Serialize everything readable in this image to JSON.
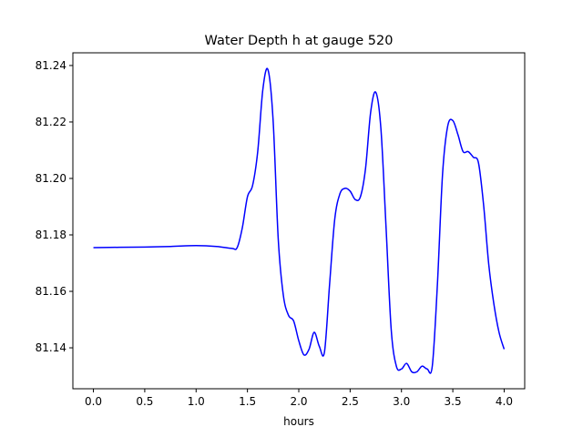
{
  "chart_data": {
    "type": "line",
    "title": "Water Depth h at gauge 520",
    "xlabel": "hours",
    "ylabel": "",
    "xlim": [
      -0.2,
      4.2
    ],
    "ylim": [
      81.1255,
      81.2445
    ],
    "xticks": [
      0.0,
      0.5,
      1.0,
      1.5,
      2.0,
      2.5,
      3.0,
      3.5,
      4.0
    ],
    "xtick_labels": [
      "0.0",
      "0.5",
      "1.0",
      "1.5",
      "2.0",
      "2.5",
      "3.0",
      "3.5",
      "4.0"
    ],
    "yticks": [
      81.14,
      81.16,
      81.18,
      81.2,
      81.22,
      81.24
    ],
    "ytick_labels": [
      "81.14",
      "81.16",
      "81.18",
      "81.20",
      "81.22",
      "81.24"
    ],
    "grid": false,
    "legend": "none",
    "series": [
      {
        "color": "#0000ff",
        "x": [
          0.0,
          0.25,
          0.5,
          0.75,
          1.0,
          1.2,
          1.35,
          1.4,
          1.45,
          1.5,
          1.55,
          1.6,
          1.65,
          1.7,
          1.75,
          1.8,
          1.85,
          1.9,
          1.95,
          2.0,
          2.05,
          2.1,
          2.15,
          2.2,
          2.25,
          2.3,
          2.35,
          2.4,
          2.45,
          2.5,
          2.55,
          2.6,
          2.65,
          2.7,
          2.75,
          2.8,
          2.85,
          2.9,
          2.95,
          3.0,
          3.05,
          3.1,
          3.15,
          3.2,
          3.25,
          3.3,
          3.35,
          3.4,
          3.45,
          3.5,
          3.55,
          3.6,
          3.65,
          3.7,
          3.75,
          3.8,
          3.85,
          3.9,
          3.95,
          4.0
        ],
        "y": [
          81.1755,
          81.1756,
          81.1757,
          81.1759,
          81.1762,
          81.1759,
          81.1752,
          81.1755,
          81.1825,
          81.1935,
          81.1975,
          81.2095,
          81.2315,
          81.2385,
          81.2205,
          81.1785,
          81.1585,
          81.1515,
          81.1495,
          81.1425,
          81.1375,
          81.1395,
          81.1455,
          81.1405,
          81.1385,
          81.1625,
          81.1855,
          81.1945,
          81.1965,
          81.1955,
          81.1925,
          81.1935,
          81.2035,
          81.2235,
          81.2305,
          81.2175,
          81.1825,
          81.1465,
          81.1335,
          81.1325,
          81.1345,
          81.1315,
          81.1315,
          81.1335,
          81.1325,
          81.1335,
          81.1625,
          81.2015,
          81.2185,
          81.2205,
          81.2155,
          81.2095,
          81.2095,
          81.2075,
          81.2055,
          81.1905,
          81.1695,
          81.1555,
          81.1455,
          81.1395
        ]
      }
    ]
  }
}
